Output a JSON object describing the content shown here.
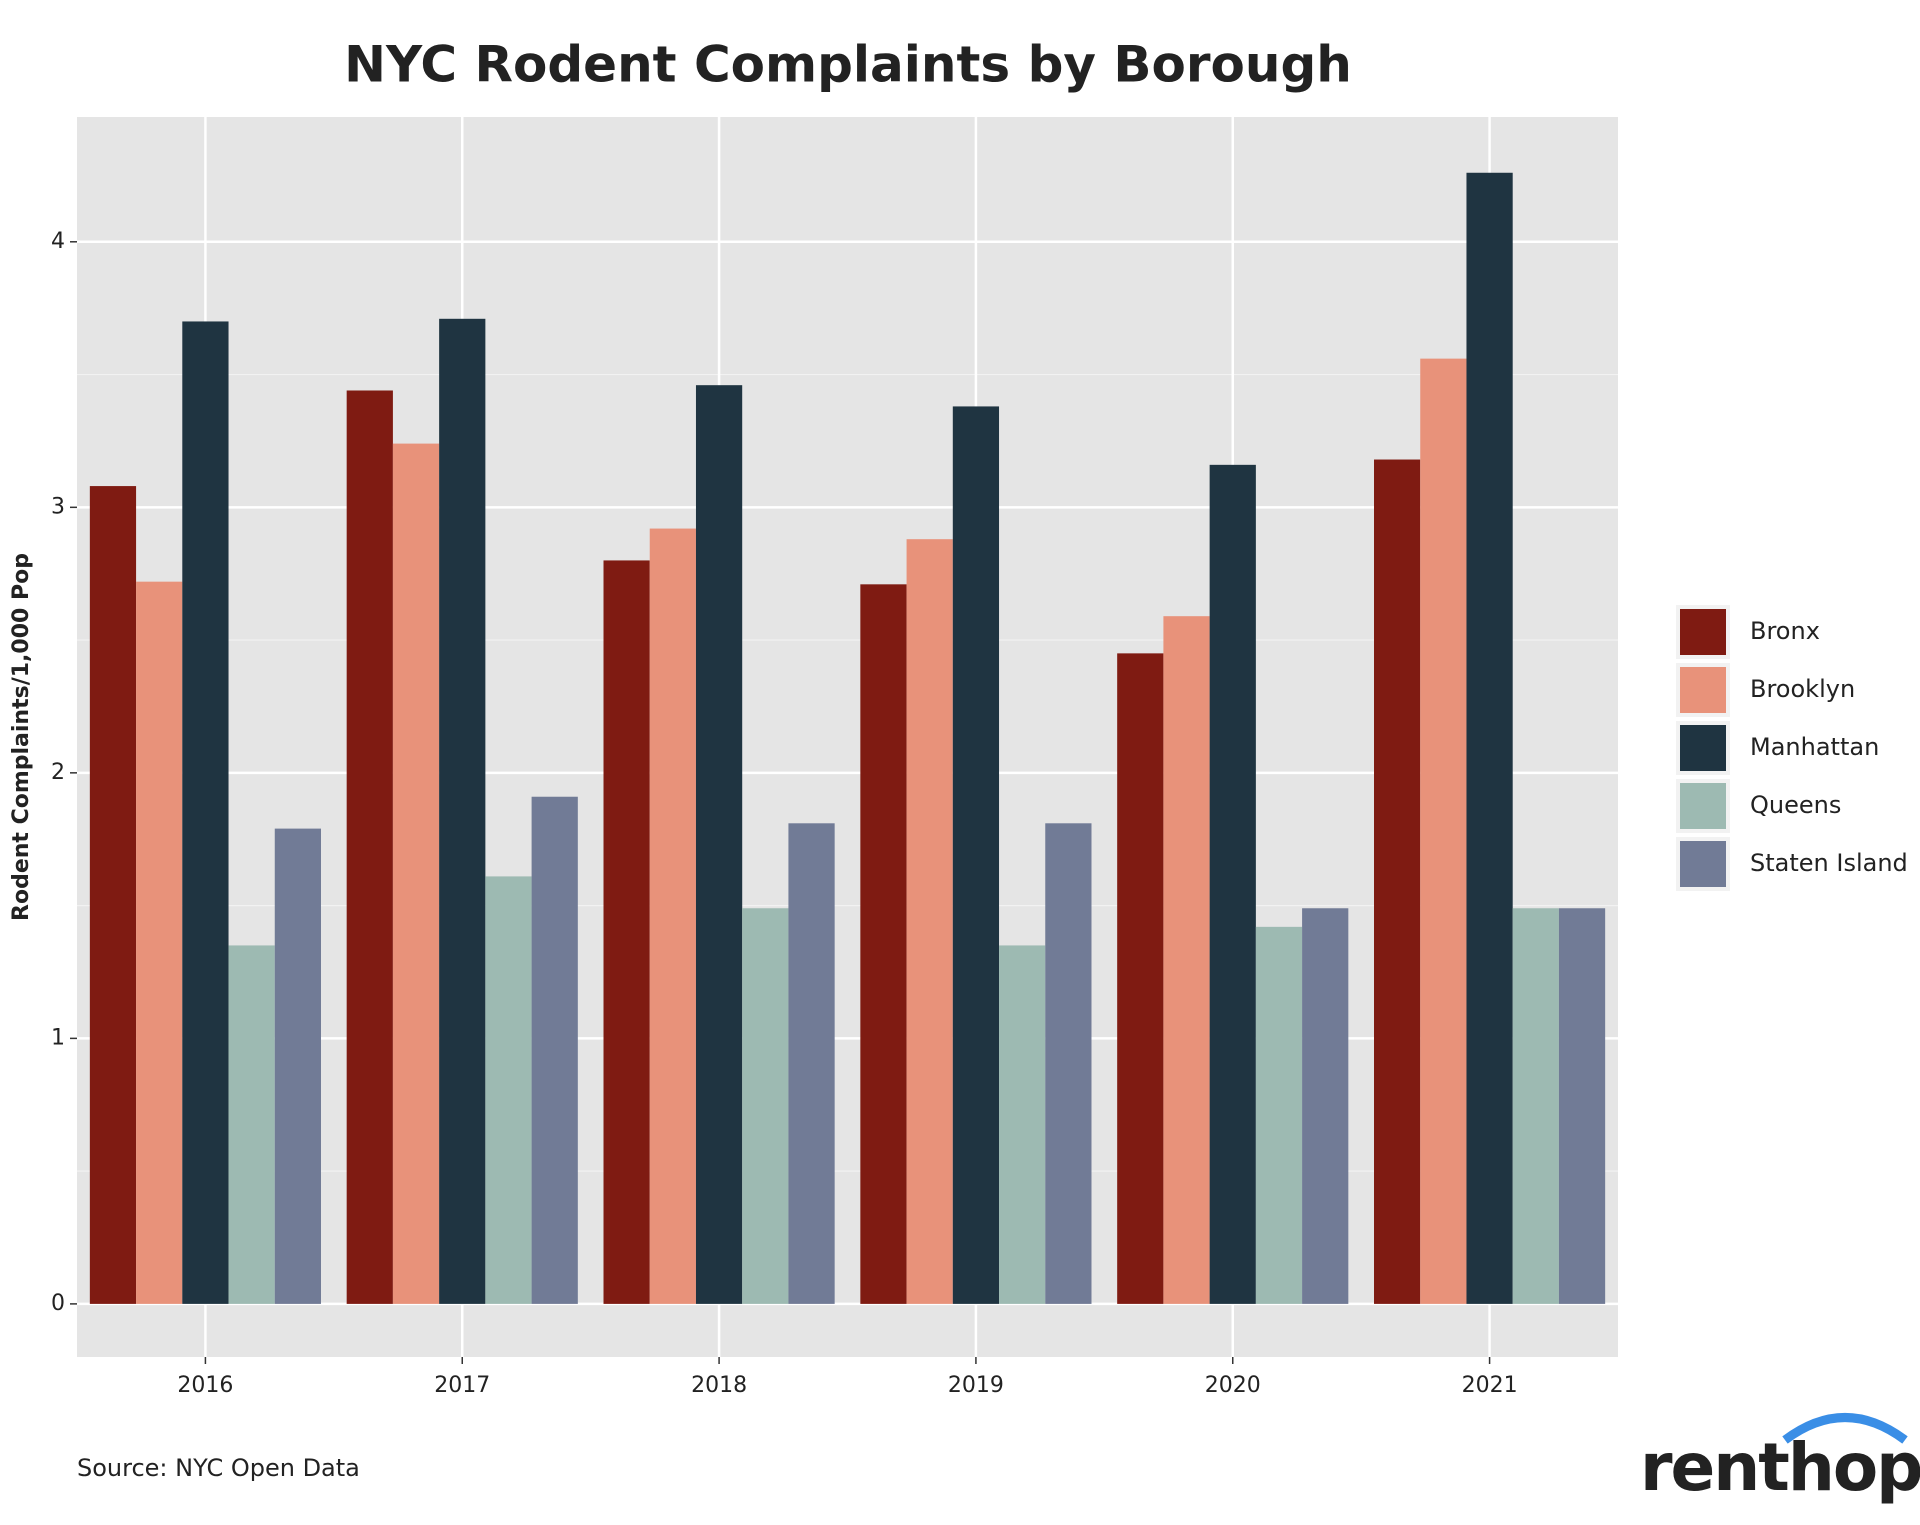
{
  "chart_data": {
    "type": "bar",
    "title": "NYC Rodent Complaints by Borough",
    "y_label": "Rodent Complaints/1,000 Pop",
    "categories": [
      "2016",
      "2017",
      "2018",
      "2019",
      "2020",
      "2021"
    ],
    "series": [
      {
        "name": "Bronx",
        "color": "#7f1b12",
        "values": [
          3.08,
          3.44,
          2.8,
          2.71,
          2.45,
          3.18
        ]
      },
      {
        "name": "Brooklyn",
        "color": "#e8927a",
        "values": [
          2.72,
          3.24,
          2.92,
          2.88,
          2.59,
          3.56
        ]
      },
      {
        "name": "Manhattan",
        "color": "#1f3441",
        "values": [
          3.7,
          3.71,
          3.46,
          3.38,
          3.16,
          4.26
        ]
      },
      {
        "name": "Queens",
        "color": "#9dbab2",
        "values": [
          1.35,
          1.61,
          1.49,
          1.35,
          1.42,
          1.49
        ]
      },
      {
        "name": "Staten Island",
        "color": "#717b96",
        "values": [
          1.79,
          1.91,
          1.81,
          1.81,
          1.49,
          1.49
        ]
      }
    ],
    "ylim": [
      -0.2,
      4.47
    ],
    "yticks": [
      0,
      1,
      2,
      3,
      4
    ],
    "grid": true,
    "legend": "right",
    "source": "Source: NYC Open Data",
    "logo": "renthop"
  }
}
